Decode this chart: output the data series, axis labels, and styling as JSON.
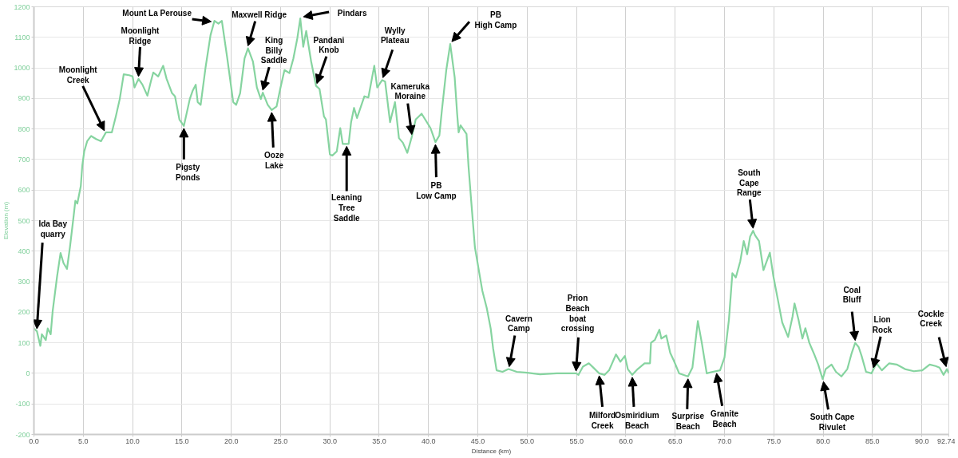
{
  "chart_data": {
    "type": "line",
    "xlabel": "Distance (km)",
    "ylabel": "Elevation (m)",
    "x": [
      0,
      0.3,
      0.65,
      0.8,
      1.2,
      1.4,
      1.7,
      1.9,
      2.35,
      2.7,
      3.0,
      3.35,
      3.65,
      4.0,
      4.2,
      4.4,
      4.75,
      4.9,
      5.1,
      5.4,
      5.8,
      6.3,
      6.8,
      7.3,
      7.9,
      8.3,
      8.7,
      9.1,
      9.65,
      10.0,
      10.2,
      10.6,
      11.0,
      11.5,
      11.85,
      12.1,
      12.6,
      13.1,
      13.45,
      14.0,
      14.3,
      14.75,
      15.2,
      15.8,
      16.1,
      16.4,
      16.6,
      16.9,
      17.4,
      17.9,
      18.3,
      18.7,
      19.05,
      19.6,
      20.2,
      20.5,
      20.9,
      21.35,
      21.7,
      22.2,
      22.6,
      23.0,
      23.2,
      23.7,
      24.1,
      24.6,
      25.0,
      25.4,
      25.9,
      26.3,
      26.7,
      27.0,
      27.3,
      27.6,
      28.1,
      28.6,
      28.95,
      29.4,
      29.6,
      30.0,
      30.25,
      30.7,
      31.05,
      31.3,
      31.9,
      32.15,
      32.45,
      32.75,
      33.5,
      33.9,
      34.5,
      34.8,
      35.3,
      35.6,
      36.1,
      36.6,
      37.0,
      37.4,
      37.85,
      38.3,
      38.7,
      39.3,
      40.2,
      40.7,
      41.1,
      41.35,
      41.8,
      42.2,
      42.65,
      42.9,
      43.05,
      43.25,
      43.85,
      44.05,
      44.3,
      44.7,
      45.1,
      45.45,
      45.9,
      46.3,
      46.55,
      46.9,
      47.5,
      48.1,
      48.95,
      50.0,
      51.3,
      53.0,
      54.95,
      55.2,
      55.65,
      56.25,
      56.7,
      57.3,
      57.85,
      58.3,
      59.0,
      59.45,
      59.9,
      60.2,
      60.65,
      61.2,
      61.9,
      62.45,
      62.55,
      62.95,
      63.4,
      63.6,
      64.1,
      64.5,
      64.85,
      65.4,
      66.3,
      66.75,
      67.3,
      67.7,
      68.2,
      68.8,
      69.55,
      70.0,
      70.45,
      70.8,
      71.15,
      71.6,
      71.95,
      72.3,
      72.6,
      72.9,
      73.1,
      73.5,
      73.95,
      74.6,
      74.95,
      75.4,
      75.85,
      76.45,
      76.9,
      77.1,
      77.5,
      77.9,
      78.2,
      78.6,
      79.1,
      79.5,
      79.95,
      80.25,
      80.85,
      81.3,
      81.85,
      82.45,
      82.9,
      83.25,
      83.6,
      83.9,
      84.35,
      84.9,
      85.4,
      85.95,
      86.7,
      87.45,
      88.3,
      89.2,
      90.05,
      90.8,
      91.4,
      91.8,
      92.2,
      92.55,
      92.74
    ],
    "series": [
      {
        "color": "#86d4a0",
        "values": [
          147,
          138,
          90,
          128,
          109,
          147,
          128,
          204,
          318,
          394,
          361,
          342,
          413,
          508,
          565,
          556,
          613,
          679,
          727,
          760,
          777,
          767,
          760,
          789,
          789,
          841,
          898,
          979,
          976,
          972,
          936,
          964,
          945,
          909,
          955,
          985,
          972,
          1007,
          964,
          917,
          907,
          831,
          810,
          898,
          926,
          945,
          888,
          879,
          1002,
          1107,
          1154,
          1145,
          1154,
          1031,
          888,
          879,
          917,
          1031,
          1064,
          1021,
          936,
          898,
          919,
          879,
          862,
          874,
          936,
          993,
          983,
          1031,
          1097,
          1162,
          1069,
          1121,
          1021,
          941,
          931,
          841,
          831,
          717,
          713,
          727,
          803,
          751,
          751,
          822,
          869,
          836,
          907,
          903,
          1007,
          936,
          960,
          955,
          822,
          888,
          770,
          755,
          722,
          774,
          831,
          850,
          803,
          757,
          779,
          860,
          993,
          1078,
          969,
          850,
          789,
          812,
          784,
          679,
          575,
          413,
          337,
          271,
          214,
          147,
          81,
          10,
          5,
          14,
          5,
          2,
          -3,
          0,
          0,
          -5,
          22,
          33,
          19,
          0,
          -5,
          10,
          62,
          38,
          57,
          14,
          -5,
          14,
          33,
          33,
          100,
          110,
          143,
          114,
          124,
          67,
          43,
          0,
          -10,
          19,
          171,
          100,
          0,
          5,
          10,
          52,
          176,
          328,
          314,
          367,
          433,
          390,
          448,
          467,
          452,
          433,
          338,
          395,
          319,
          243,
          167,
          119,
          186,
          229,
          176,
          114,
          148,
          100,
          62,
          29,
          -19,
          14,
          29,
          5,
          -10,
          14,
          67,
          100,
          86,
          57,
          5,
          0,
          33,
          10,
          33,
          29,
          14,
          7,
          10,
          29,
          24,
          19,
          -5,
          14,
          0
        ]
      }
    ],
    "xlim": [
      0,
      92.74
    ],
    "ylim": [
      -200,
      1200
    ],
    "xticks": [
      {
        "value": 0,
        "label": "0.0"
      },
      {
        "value": 5,
        "label": "5.0"
      },
      {
        "value": 10,
        "label": "10.0"
      },
      {
        "value": 15,
        "label": "15.0"
      },
      {
        "value": 20,
        "label": "20.0"
      },
      {
        "value": 25,
        "label": "25.0"
      },
      {
        "value": 30,
        "label": "30.0"
      },
      {
        "value": 35,
        "label": "35.0"
      },
      {
        "value": 40,
        "label": "40.0"
      },
      {
        "value": 45,
        "label": "45.0"
      },
      {
        "value": 50,
        "label": "50.0"
      },
      {
        "value": 55,
        "label": "55.0"
      },
      {
        "value": 60,
        "label": "60.0"
      },
      {
        "value": 65,
        "label": "65.0"
      },
      {
        "value": 70,
        "label": "70.0"
      },
      {
        "value": 75,
        "label": "75.0"
      },
      {
        "value": 80,
        "label": "80.0"
      },
      {
        "value": 85,
        "label": "85.0"
      },
      {
        "value": 90,
        "label": "90.0"
      },
      92.74
    ],
    "yticks": [
      -200,
      -100,
      0,
      100,
      200,
      300,
      400,
      500,
      600,
      700,
      800,
      900,
      1000,
      1100,
      1200
    ],
    "grid": true,
    "annotations": [
      {
        "text": "Ida Bay\nquarry",
        "x": 0.3,
        "y": 138
      },
      {
        "text": "Moonlight\nCreek",
        "x": 7.3,
        "y": 789
      },
      {
        "text": "Moonlight\nRidge",
        "x": 10.6,
        "y": 964
      },
      {
        "text": "Mount La Perouse",
        "x": 18.3,
        "y": 1154
      },
      {
        "text": "Maxwell Ridge",
        "x": 21.7,
        "y": 1064
      },
      {
        "text": "King\nBilly\nSaddle",
        "x": 23.2,
        "y": 919
      },
      {
        "text": "Ooze\nLake",
        "x": 24.1,
        "y": 862
      },
      {
        "text": "Pindars",
        "x": 27.0,
        "y": 1162
      },
      {
        "text": "Pandani\nKnob",
        "x": 28.6,
        "y": 941
      },
      {
        "text": "Pigsty\nPonds",
        "x": 15.2,
        "y": 810
      },
      {
        "text": "Leaning\nTree\nSaddle",
        "x": 31.7,
        "y": 751
      },
      {
        "text": "Wylly\nPlateau",
        "x": 35.3,
        "y": 960
      },
      {
        "text": "Kameruka\nMoraine",
        "x": 38.3,
        "y": 774
      },
      {
        "text": "PB\nLow Camp",
        "x": 40.7,
        "y": 757
      },
      {
        "text": "PB\nHigh Camp",
        "x": 42.2,
        "y": 1078
      },
      {
        "text": "Cavern\nCamp",
        "x": 48.1,
        "y": 14
      },
      {
        "text": "Prion\nBeach\nboat\ncrossing",
        "x": 54.95,
        "y": 0
      },
      {
        "text": "Milford\nCreek",
        "x": 57.3,
        "y": 0
      },
      {
        "text": "Osmiridium\nBeach",
        "x": 60.65,
        "y": -5
      },
      {
        "text": "Surprise\nBeach",
        "x": 66.3,
        "y": -10
      },
      {
        "text": "Granite\nBeach",
        "x": 69.2,
        "y": 8
      },
      {
        "text": "South\nCape\nRange",
        "x": 72.9,
        "y": 467
      },
      {
        "text": "South Cape\nRivulet",
        "x": 79.95,
        "y": -19
      },
      {
        "text": "Coal\nBluff",
        "x": 83.25,
        "y": 100
      },
      {
        "text": "Lion\nRock",
        "x": 85.1,
        "y": 13
      },
      {
        "text": "Cockle\nCreek",
        "x": 92.55,
        "y": 14
      }
    ]
  }
}
